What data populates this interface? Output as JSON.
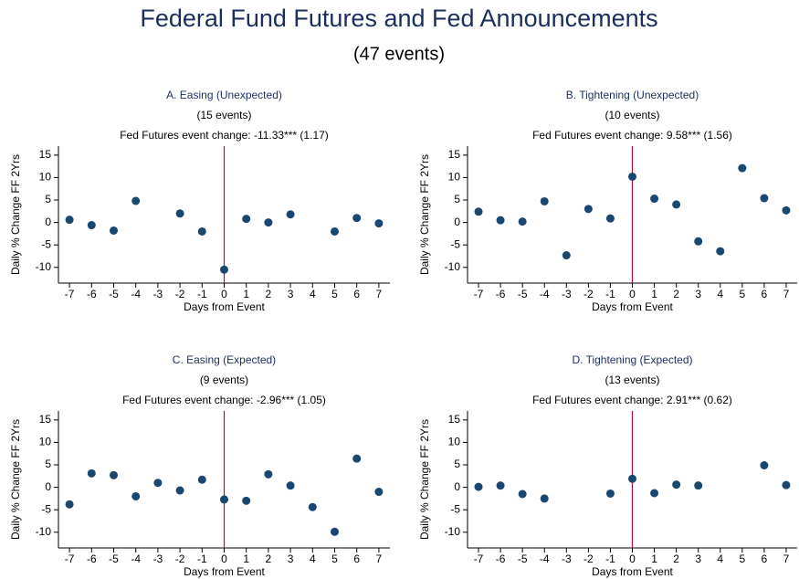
{
  "header": {
    "title": "Federal Fund Futures and Fed Announcements",
    "subtitle": "(47 events)"
  },
  "chart_data": [
    {
      "type": "scatter",
      "title": "A. Easing (Unexpected)",
      "subtitle": "(15 events)",
      "annotation": "Fed Futures event change: -11.33*** (1.17)",
      "xlabel": "Days from Event",
      "ylabel": "Daily % Change FF 2Yrs",
      "x": [
        -7,
        -6,
        -5,
        -4,
        -3,
        -2,
        -1,
        0,
        1,
        2,
        3,
        4,
        5,
        6,
        7
      ],
      "values": [
        0.6,
        -0.6,
        -1.8,
        4.8,
        null,
        2.0,
        -2.0,
        -10.5,
        0.8,
        0.0,
        1.8,
        null,
        -2.0,
        1.0,
        -0.2
      ],
      "color": "#1a476f",
      "vline": 0,
      "vline_color": "#b0103a",
      "xlim": [
        -7.5,
        7.5
      ],
      "ylim": [
        -13.5,
        17
      ],
      "xticks": [
        -7,
        -6,
        -5,
        -4,
        -3,
        -2,
        -1,
        0,
        1,
        2,
        3,
        4,
        5,
        6,
        7
      ],
      "yticks": [
        -10,
        -5,
        0,
        5,
        10,
        15
      ]
    },
    {
      "type": "scatter",
      "title": "B. Tightening (Unexpected)",
      "subtitle": "(10 events)",
      "annotation": "Fed Futures event change: 9.58*** (1.56)",
      "xlabel": "Days from Event",
      "ylabel": "Daily % Change FF 2Yrs",
      "x": [
        -7,
        -6,
        -5,
        -4,
        -3,
        -2,
        -1,
        0,
        1,
        2,
        3,
        4,
        5,
        6,
        7
      ],
      "values": [
        2.4,
        0.5,
        0.2,
        4.7,
        -7.3,
        3.0,
        0.9,
        10.2,
        5.3,
        4.0,
        -4.2,
        -6.4,
        12.1,
        5.4,
        2.7
      ],
      "color": "#1a476f",
      "vline": 0,
      "vline_color": "#b0103a",
      "xlim": [
        -7.5,
        7.5
      ],
      "ylim": [
        -13.5,
        17
      ],
      "xticks": [
        -7,
        -6,
        -5,
        -4,
        -3,
        -2,
        -1,
        0,
        1,
        2,
        3,
        4,
        5,
        6,
        7
      ],
      "yticks": [
        -10,
        -5,
        0,
        5,
        10,
        15
      ]
    },
    {
      "type": "scatter",
      "title": "C. Easing (Expected)",
      "subtitle": "(9 events)",
      "annotation": "Fed Futures event change: -2.96*** (1.05)",
      "xlabel": "Days from Event",
      "ylabel": "Daily % Change FF 2Yrs",
      "x": [
        -7,
        -6,
        -5,
        -4,
        -3,
        -2,
        -1,
        0,
        1,
        2,
        3,
        4,
        5,
        6,
        7
      ],
      "values": [
        -3.8,
        3.1,
        2.7,
        -2.0,
        1.0,
        -0.7,
        1.7,
        -2.7,
        -3.0,
        2.9,
        0.4,
        -4.4,
        -9.9,
        6.4,
        -1.0
      ],
      "color": "#1a476f",
      "vline": 0,
      "vline_color": "#b0103a",
      "xlim": [
        -7.5,
        7.5
      ],
      "ylim": [
        -13.5,
        17
      ],
      "xticks": [
        -7,
        -6,
        -5,
        -4,
        -3,
        -2,
        -1,
        0,
        1,
        2,
        3,
        4,
        5,
        6,
        7
      ],
      "yticks": [
        -10,
        -5,
        0,
        5,
        10,
        15
      ]
    },
    {
      "type": "scatter",
      "title": "D. Tightening (Expected)",
      "subtitle": "(13 events)",
      "annotation": "Fed Futures event change: 2.91*** (0.62)",
      "xlabel": "Days from Event",
      "ylabel": "Daily % Change FF 2Yrs",
      "x": [
        -7,
        -6,
        -5,
        -4,
        -3,
        -2,
        -1,
        0,
        1,
        2,
        3,
        4,
        5,
        6,
        7
      ],
      "values": [
        0.1,
        0.4,
        -1.5,
        -2.5,
        null,
        null,
        -1.4,
        1.9,
        -1.3,
        0.6,
        0.4,
        null,
        null,
        4.9,
        0.5
      ],
      "color": "#1a476f",
      "vline": 0,
      "vline_color": "#b0103a",
      "xlim": [
        -7.5,
        7.5
      ],
      "ylim": [
        -13.5,
        17
      ],
      "xticks": [
        -7,
        -6,
        -5,
        -4,
        -3,
        -2,
        -1,
        0,
        1,
        2,
        3,
        4,
        5,
        6,
        7
      ],
      "yticks": [
        -10,
        -5,
        0,
        5,
        10,
        15
      ]
    }
  ]
}
